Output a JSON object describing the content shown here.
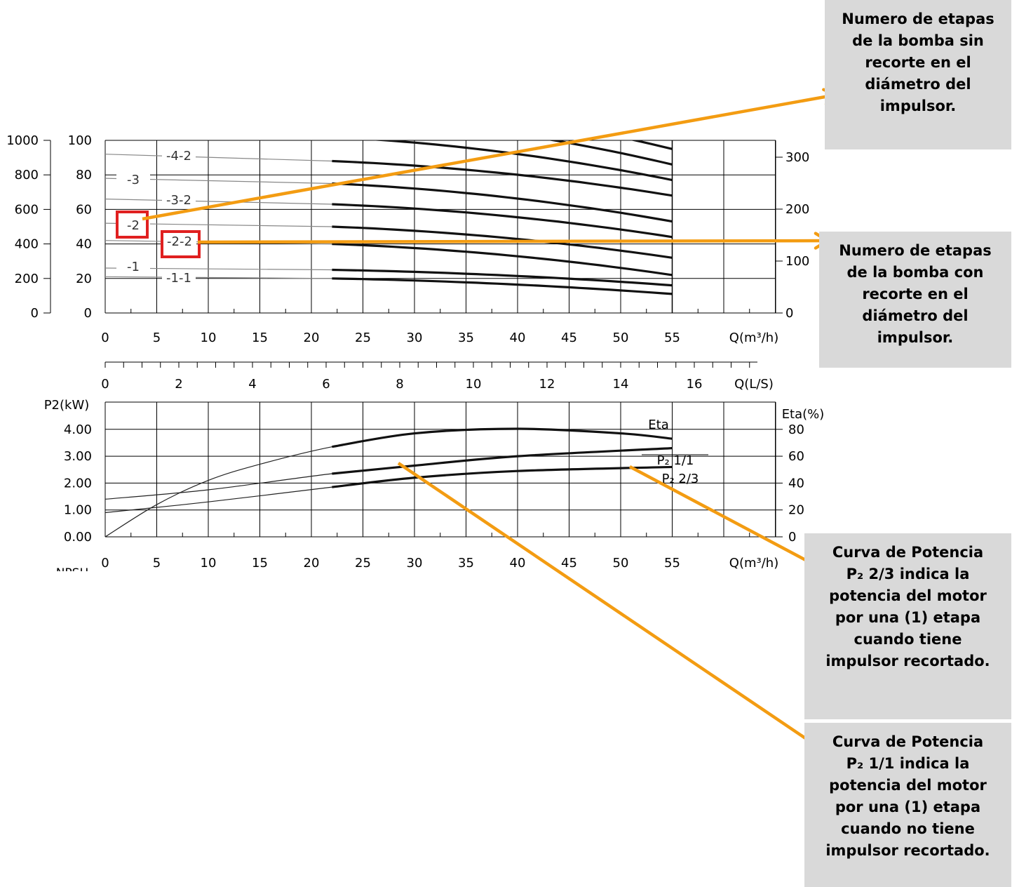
{
  "chart_data": [
    {
      "type": "line",
      "title": "",
      "xlabel": "Q(m³/h)",
      "x2label": "Q(L/S)",
      "x_ticks": [
        0,
        5,
        10,
        15,
        20,
        25,
        30,
        35,
        40,
        45,
        50,
        55
      ],
      "x2_ticks": [
        0,
        2,
        4,
        6,
        8,
        10,
        12,
        14,
        16
      ],
      "xlim": [
        0,
        65
      ],
      "ylim": [
        0,
        100
      ],
      "y_ticks": [
        0,
        20,
        40,
        60,
        80,
        100
      ],
      "y_outer_ticks": [
        "0",
        "200",
        "400",
        "600",
        "800",
        "1000"
      ],
      "y_right_ticks": [
        "0",
        "100",
        "200",
        "300"
      ],
      "grid": true,
      "stage_labels": [
        "-4-2",
        "-3",
        "-3-2",
        "-2",
        "-2-2",
        "-1",
        "-1-1"
      ],
      "series": [
        {
          "name": "-1-1",
          "x": [
            0,
            22,
            55
          ],
          "y": [
            21,
            20,
            11
          ]
        },
        {
          "name": "-1",
          "x": [
            0,
            22,
            55
          ],
          "y": [
            26,
            25,
            16
          ]
        },
        {
          "name": "-2-2",
          "x": [
            0,
            22,
            55
          ],
          "y": [
            42,
            40,
            22
          ]
        },
        {
          "name": "-2",
          "x": [
            0,
            22,
            55
          ],
          "y": [
            52,
            50,
            32
          ]
        },
        {
          "name": "-3-2",
          "x": [
            0,
            22,
            55
          ],
          "y": [
            66,
            63,
            44
          ]
        },
        {
          "name": "-3",
          "x": [
            0,
            22,
            55
          ],
          "y": [
            78,
            75,
            53
          ]
        },
        {
          "name": "-4-2",
          "x": [
            0,
            22,
            55
          ],
          "y": [
            92,
            88,
            68
          ]
        }
      ],
      "extra_operating_curves": [
        {
          "y_at_22": 102,
          "y_at_55": 77
        },
        {
          "y_at_22": 115,
          "y_at_55": 86
        },
        {
          "y_at_22": 125,
          "y_at_55": 95
        }
      ]
    },
    {
      "type": "line",
      "title": "",
      "xlabel": "Q(m³/h)",
      "ylabel": "P2(kW)",
      "y2label": "Eta(%)",
      "x_ticks": [
        0,
        5,
        10,
        15,
        20,
        25,
        30,
        35,
        40,
        45,
        50,
        55
      ],
      "xlim": [
        0,
        65
      ],
      "ylim": [
        0,
        5
      ],
      "y_ticks": [
        "0.00",
        "1.00",
        "2.00",
        "3.00",
        "4.00"
      ],
      "y2_ticks": [
        "0",
        "20",
        "40",
        "60",
        "80"
      ],
      "below_label": "NPSH",
      "grid": true,
      "series": [
        {
          "name": "Eta",
          "x": [
            0,
            5,
            10,
            15,
            22,
            30,
            40,
            50,
            55
          ],
          "y": [
            0,
            1.2,
            2.1,
            2.7,
            3.35,
            3.85,
            4.02,
            3.85,
            3.65
          ]
        },
        {
          "name": "P₂ 1/1",
          "x": [
            0,
            10,
            22,
            30,
            40,
            55
          ],
          "y": [
            1.4,
            1.75,
            2.35,
            2.65,
            3.0,
            3.3
          ]
        },
        {
          "name": "P₂ 2/3",
          "x": [
            0,
            10,
            22,
            30,
            40,
            55
          ],
          "y": [
            0.9,
            1.3,
            1.85,
            2.2,
            2.45,
            2.6
          ]
        }
      ]
    }
  ],
  "callouts": [
    {
      "text": "Numero de etapas\nde la bomba sin\nrecorte en el\ndiámetro del\nimpulsor."
    },
    {
      "text": "Numero de etapas\nde la bomba con\nrecorte en el\ndiámetro del\nimpulsor."
    },
    {
      "text": "Curva de Potencia\nP₂ 2/3 indica la\npotencia del motor\npor una (1) etapa\ncuando tiene\nimpulsor recortado."
    },
    {
      "text": "Curva de Potencia\nP₂ 1/1 indica la\npotencia del motor\npor una (1) etapa\ncuando no tiene\nimpulsor recortado."
    }
  ],
  "highlighted_labels": [
    "-2",
    "-2-2"
  ],
  "colors": {
    "accent": "#f39c12",
    "highlight": "#e02020",
    "callout_bg": "#d9d9d9"
  }
}
